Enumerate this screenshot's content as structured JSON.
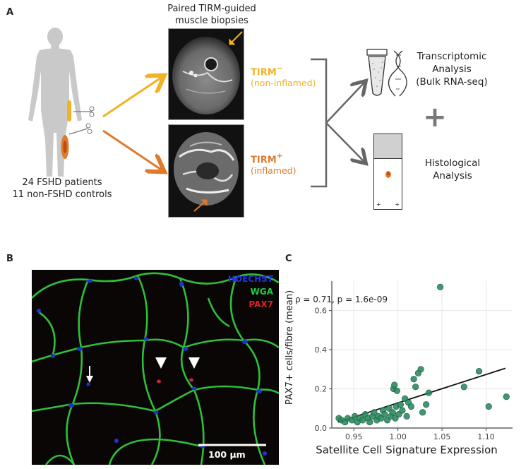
{
  "panels": {
    "a": "A",
    "b": "B",
    "c": "C"
  },
  "panel_a": {
    "mri_title_line1": "Paired TIRM-guided",
    "mri_title_line2": "muscle biopsies",
    "tirm_neg_label": "TIRM",
    "tirm_neg_sign": "−",
    "tirm_neg_sub": "(non-inflamed)",
    "tirm_pos_label": "TIRM",
    "tirm_pos_sign": "+",
    "tirm_pos_sub": "(inflamed)",
    "cohort_line1": "24 FSHD patients",
    "cohort_line2": "11 non-FSHD controls",
    "transcriptomic_line1": "Transcriptomic",
    "transcriptomic_line2": "Analysis",
    "transcriptomic_line3": "(Bulk RNA-seq)",
    "histological_line1": "Histological",
    "histological_line2": "Analysis",
    "plus_sign": "+",
    "slide_marks": [
      "+",
      "+"
    ],
    "colors": {
      "tirm_neg": "#f0b323",
      "tirm_pos": "#e07a2a",
      "bracket": "#666666"
    }
  },
  "panel_b": {
    "stains": [
      {
        "name": "HOECHST",
        "color": "#2233dd"
      },
      {
        "name": "WGA",
        "color": "#22cc44"
      },
      {
        "name": "PAX7",
        "color": "#dd2222"
      }
    ],
    "scale_bar_label": "100 µm"
  },
  "chart_data": {
    "type": "scatter",
    "xlabel": "Satellite Cell Signature Expression",
    "ylabel": "PAX7+ cells/fibre (mean)",
    "annotation": "ρ = 0.71, p = 1.6e-09",
    "xlim": [
      0.925,
      1.13
    ],
    "ylim": [
      0.0,
      0.75
    ],
    "x_ticks": [
      0.95,
      1.0,
      1.05,
      1.1
    ],
    "x_tick_labels": [
      "0.95",
      "1.00",
      "1.05",
      "1.10"
    ],
    "y_ticks": [
      0.0,
      0.2,
      0.4,
      0.6
    ],
    "y_tick_labels": [
      "0.0",
      "0.2",
      "0.4",
      "0.6"
    ],
    "grid": true,
    "point_color": "#2e8b62",
    "fit_line": {
      "x": [
        0.932,
        1.122
      ],
      "y": [
        0.03,
        0.305
      ]
    },
    "points": [
      {
        "x": 0.933,
        "y": 0.05
      },
      {
        "x": 0.936,
        "y": 0.04
      },
      {
        "x": 0.94,
        "y": 0.03
      },
      {
        "x": 0.943,
        "y": 0.05
      },
      {
        "x": 0.948,
        "y": 0.04
      },
      {
        "x": 0.951,
        "y": 0.06
      },
      {
        "x": 0.954,
        "y": 0.03
      },
      {
        "x": 0.957,
        "y": 0.05
      },
      {
        "x": 0.96,
        "y": 0.04
      },
      {
        "x": 0.963,
        "y": 0.07
      },
      {
        "x": 0.966,
        "y": 0.05
      },
      {
        "x": 0.968,
        "y": 0.03
      },
      {
        "x": 0.971,
        "y": 0.06
      },
      {
        "x": 0.973,
        "y": 0.08
      },
      {
        "x": 0.976,
        "y": 0.04
      },
      {
        "x": 0.978,
        "y": 0.06
      },
      {
        "x": 0.981,
        "y": 0.05
      },
      {
        "x": 0.983,
        "y": 0.09
      },
      {
        "x": 0.985,
        "y": 0.07
      },
      {
        "x": 0.988,
        "y": 0.04
      },
      {
        "x": 0.99,
        "y": 0.1
      },
      {
        "x": 0.992,
        "y": 0.06
      },
      {
        "x": 0.994,
        "y": 0.08
      },
      {
        "x": 0.995,
        "y": 0.2
      },
      {
        "x": 0.996,
        "y": 0.22
      },
      {
        "x": 0.997,
        "y": 0.05
      },
      {
        "x": 0.998,
        "y": 0.11
      },
      {
        "x": 0.999,
        "y": 0.19
      },
      {
        "x": 1.001,
        "y": 0.07
      },
      {
        "x": 1.003,
        "y": 0.12
      },
      {
        "x": 1.005,
        "y": 0.09
      },
      {
        "x": 1.008,
        "y": 0.15
      },
      {
        "x": 1.01,
        "y": 0.06
      },
      {
        "x": 1.012,
        "y": 0.13
      },
      {
        "x": 1.015,
        "y": 0.11
      },
      {
        "x": 1.018,
        "y": 0.25
      },
      {
        "x": 1.02,
        "y": 0.21
      },
      {
        "x": 1.023,
        "y": 0.28
      },
      {
        "x": 1.026,
        "y": 0.3
      },
      {
        "x": 1.028,
        "y": 0.08
      },
      {
        "x": 1.032,
        "y": 0.12
      },
      {
        "x": 1.035,
        "y": 0.18
      },
      {
        "x": 1.048,
        "y": 0.72
      },
      {
        "x": 1.075,
        "y": 0.21
      },
      {
        "x": 1.092,
        "y": 0.29
      },
      {
        "x": 1.103,
        "y": 0.11
      },
      {
        "x": 1.123,
        "y": 0.16
      }
    ]
  }
}
